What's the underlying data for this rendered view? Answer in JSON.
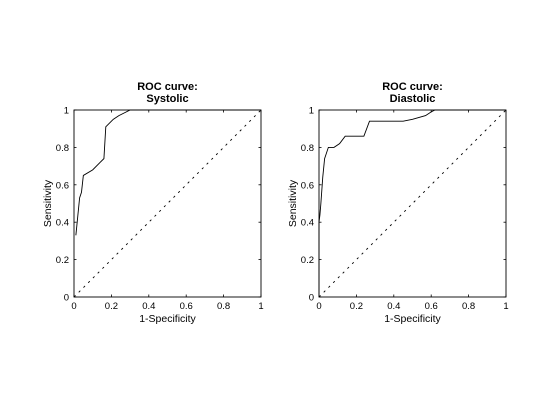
{
  "chart_data": [
    {
      "type": "line",
      "title": [
        "ROC curve:",
        "Systolic"
      ],
      "xlabel": "1-Specificity",
      "ylabel": "Sensitivity",
      "xlim": [
        0,
        1
      ],
      "ylim": [
        0,
        1
      ],
      "xticks": [
        0,
        0.2,
        0.4,
        0.6,
        0.8,
        1
      ],
      "xtick_labels": [
        "0",
        "0.2",
        "0.4",
        "0.6",
        "0.8",
        "1"
      ],
      "yticks": [
        0,
        0.2,
        0.4,
        0.6,
        0.8,
        1
      ],
      "ytick_labels": [
        "0",
        "0.2",
        "0.4",
        "0.6",
        "0.8",
        "1"
      ],
      "grid": false,
      "series": [
        {
          "style": "solid",
          "color": "#000000",
          "x": [
            0.01,
            0.02,
            0.03,
            0.04,
            0.05,
            0.1,
            0.14,
            0.16,
            0.17,
            0.21,
            0.24,
            0.28,
            0.3,
            1
          ],
          "y": [
            0.33,
            0.43,
            0.53,
            0.56,
            0.65,
            0.68,
            0.72,
            0.74,
            0.91,
            0.95,
            0.97,
            0.99,
            1,
            1
          ]
        },
        {
          "style": "dotted",
          "color": "#000000",
          "x": [
            0,
            1
          ],
          "y": [
            0,
            1
          ]
        }
      ]
    },
    {
      "type": "line",
      "title": [
        "ROC curve:",
        "Diastolic"
      ],
      "xlabel": "1-Specificity",
      "ylabel": "Sensitivity",
      "xlim": [
        0,
        1
      ],
      "ylim": [
        0,
        1
      ],
      "xticks": [
        0,
        0.2,
        0.4,
        0.6,
        0.8,
        1
      ],
      "xtick_labels": [
        "0",
        "0.2",
        "0.4",
        "0.6",
        "0.8",
        "1"
      ],
      "yticks": [
        0,
        0.2,
        0.4,
        0.6,
        0.8,
        1
      ],
      "ytick_labels": [
        "0",
        "0.2",
        "0.4",
        "0.6",
        "0.8",
        "1"
      ],
      "grid": false,
      "series": [
        {
          "style": "solid",
          "color": "#000000",
          "x": [
            0,
            0,
            0.005,
            0.01,
            0.02,
            0.03,
            0.05,
            0.08,
            0.11,
            0.14,
            0.18,
            0.24,
            0.27,
            0.45,
            0.5,
            0.57,
            0.6,
            0.62,
            1
          ],
          "y": [
            0,
            0.4,
            0.44,
            0.5,
            0.64,
            0.74,
            0.8,
            0.8,
            0.82,
            0.86,
            0.86,
            0.86,
            0.94,
            0.94,
            0.95,
            0.97,
            0.99,
            1,
            1
          ]
        },
        {
          "style": "dotted",
          "color": "#000000",
          "x": [
            0,
            1
          ],
          "y": [
            0,
            1
          ]
        }
      ]
    }
  ]
}
